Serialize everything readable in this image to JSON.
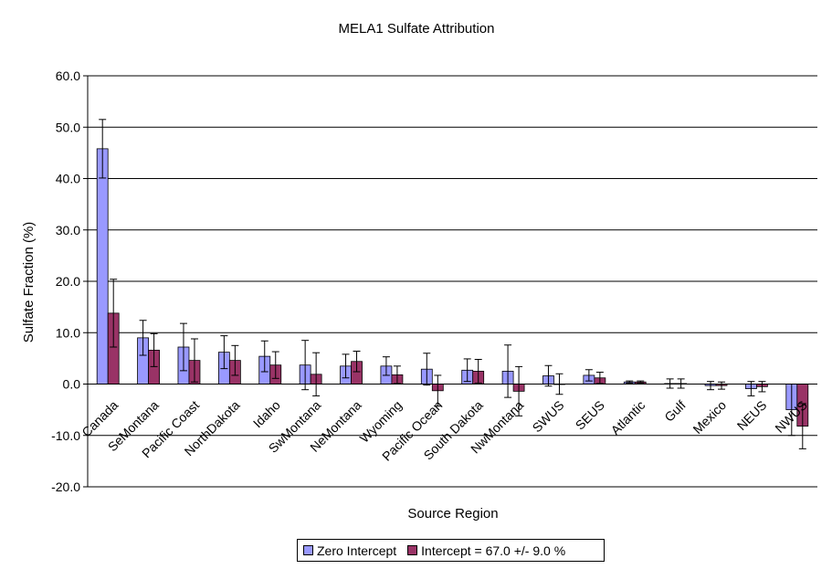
{
  "chart_data": {
    "type": "bar",
    "title": "MELA1 Sulfate Attribution",
    "xlabel": "Source Region",
    "ylabel": "Sulfate Fraction (%)",
    "ylim": [
      -20,
      60
    ],
    "yticks": [
      "60.0",
      "50.0",
      "40.0",
      "30.0",
      "20.0",
      "10.0",
      "0.0",
      "-10.0",
      "-20.0"
    ],
    "grid": true,
    "legend_position": "bottom",
    "categories": [
      "Canada",
      "SeMontana",
      "Pacific Coast",
      "NorthDakota",
      "Idaho",
      "SwMontana",
      "NeMontana",
      "Wyoming",
      "Pacific Ocean",
      "South Dakota",
      "NwMontana",
      "SWUS",
      "SEUS",
      "Atlantic",
      "Gulf",
      "Mexico",
      "NEUS",
      "NWUS"
    ],
    "series": [
      {
        "name": "Zero Intercept",
        "color": "#9999ff",
        "values": [
          45.8,
          9.0,
          7.2,
          6.2,
          5.4,
          3.7,
          3.5,
          3.5,
          2.9,
          2.7,
          2.5,
          1.6,
          1.7,
          0.4,
          0.1,
          -0.3,
          -0.9,
          -5.0
        ],
        "errors": [
          5.7,
          3.4,
          4.6,
          3.2,
          3.0,
          4.8,
          2.3,
          1.8,
          3.1,
          2.2,
          5.1,
          2.0,
          1.1,
          0.2,
          0.9,
          0.8,
          1.4,
          5.0
        ]
      },
      {
        "name": "Intercept = 67.0 +/- 9.0 %",
        "color": "#993366",
        "values": [
          13.8,
          6.6,
          4.6,
          4.6,
          3.7,
          1.9,
          4.4,
          1.8,
          -1.3,
          2.5,
          -1.4,
          0.0,
          1.2,
          0.4,
          0.1,
          -0.3,
          -0.5,
          -8.2
        ],
        "errors": [
          6.6,
          3.2,
          4.2,
          2.9,
          2.6,
          4.2,
          2.0,
          1.7,
          3.0,
          2.3,
          4.8,
          2.0,
          1.1,
          0.2,
          0.9,
          0.7,
          1.0,
          4.4
        ]
      }
    ]
  }
}
